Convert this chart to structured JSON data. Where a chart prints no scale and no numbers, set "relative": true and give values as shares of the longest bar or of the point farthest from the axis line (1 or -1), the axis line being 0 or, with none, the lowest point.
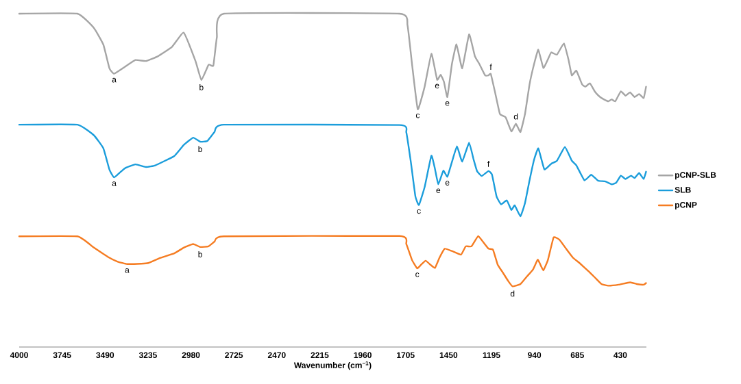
{
  "chart_data": {
    "type": "line",
    "relative": true,
    "xlabel": "**Wavenumber (cm$^{−1}$)**",
    "xlim": [
      4000,
      275
    ],
    "xticks": [
      4000,
      3745,
      3490,
      3235,
      2980,
      2725,
      2470,
      2215,
      1960,
      1705,
      1450,
      1195,
      940,
      685,
      430
    ],
    "tick_labels": "x",
    "legend": "right",
    "marker": "none",
    "line_style": "solid",
    "grid": false,
    "series": [
      {
        "name": "pCNP-SLB",
        "color": "#a5a5a5",
        "x": [
          4000,
          3654,
          3556,
          3500,
          3464,
          3436,
          3374,
          3310,
          3248,
          3177,
          3093,
          3023,
          2953,
          2918,
          2875,
          2847,
          2826,
          2784,
          1741,
          1694,
          1667,
          1633,
          1592,
          1552,
          1518,
          1497,
          1477,
          1457,
          1430,
          1403,
          1369,
          1328,
          1294,
          1267,
          1233,
          1213,
          1199,
          1172,
          1145,
          1111,
          1077,
          1050,
          1023,
          996,
          969,
          942,
          917,
          887,
          860,
          840,
          806,
          765,
          738,
          718,
          691,
          657,
          637,
          610,
          582,
          555,
          528,
          501,
          481,
          460,
          427,
          399,
          372,
          345,
          318,
          291,
          277
        ],
        "values": [
          1.0,
          1.0,
          0.957,
          0.907,
          0.836,
          0.82,
          0.84,
          0.861,
          0.858,
          0.872,
          0.9,
          0.943,
          0.858,
          0.801,
          0.847,
          0.844,
          0.929,
          1.0,
          1.0,
          0.966,
          0.849,
          0.713,
          0.781,
          0.88,
          0.802,
          0.817,
          0.795,
          0.75,
          0.849,
          0.908,
          0.836,
          0.938,
          0.873,
          0.849,
          0.815,
          0.815,
          0.819,
          0.76,
          0.699,
          0.689,
          0.647,
          0.67,
          0.645,
          0.699,
          0.788,
          0.849,
          0.892,
          0.837,
          0.863,
          0.884,
          0.877,
          0.911,
          0.863,
          0.815,
          0.829,
          0.788,
          0.781,
          0.791,
          0.767,
          0.752,
          0.743,
          0.737,
          0.743,
          0.737,
          0.767,
          0.754,
          0.764,
          0.75,
          0.759,
          0.747,
          0.781
        ]
      },
      {
        "name": "SLB",
        "color": "#1b9ddb",
        "x": [
          4000,
          3654,
          3556,
          3500,
          3464,
          3436,
          3373,
          3310,
          3247,
          3191,
          3079,
          3023,
          2967,
          2925,
          2883,
          2840,
          2784,
          1741,
          1701,
          1674,
          1647,
          1626,
          1592,
          1552,
          1531,
          1511,
          1481,
          1457,
          1430,
          1400,
          1369,
          1328,
          1301,
          1281,
          1253,
          1213,
          1192,
          1165,
          1138,
          1104,
          1077,
          1057,
          1023,
          996,
          969,
          942,
          917,
          881,
          840,
          806,
          759,
          718,
          691,
          643,
          603,
          562,
          521,
          481,
          454,
          427,
          399,
          366,
          345,
          318,
          291,
          277
        ],
        "values": [
          0.667,
          0.667,
          0.635,
          0.596,
          0.532,
          0.509,
          0.536,
          0.548,
          0.54,
          0.545,
          0.573,
          0.606,
          0.628,
          0.616,
          0.618,
          0.645,
          0.667,
          0.666,
          0.644,
          0.555,
          0.452,
          0.426,
          0.48,
          0.574,
          0.535,
          0.488,
          0.529,
          0.511,
          0.555,
          0.602,
          0.556,
          0.613,
          0.562,
          0.528,
          0.513,
          0.528,
          0.517,
          0.452,
          0.428,
          0.44,
          0.411,
          0.425,
          0.392,
          0.432,
          0.5,
          0.562,
          0.596,
          0.533,
          0.55,
          0.559,
          0.6,
          0.559,
          0.545,
          0.5,
          0.517,
          0.499,
          0.497,
          0.488,
          0.493,
          0.514,
          0.504,
          0.514,
          0.507,
          0.522,
          0.504,
          0.526
        ]
      },
      {
        "name": "pCNP",
        "color": "#f57c22",
        "x": [
          4000,
          3654,
          3556,
          3472,
          3415,
          3359,
          3275,
          3233,
          3163,
          3079,
          3023,
          2967,
          2925,
          2876,
          2840,
          2784,
          1741,
          1701,
          1667,
          1636,
          1613,
          1586,
          1558,
          1531,
          1504,
          1473,
          1430,
          1376,
          1348,
          1314,
          1274,
          1240,
          1213,
          1186,
          1158,
          1131,
          1097,
          1070,
          1023,
          982,
          948,
          921,
          908,
          887,
          860,
          826,
          792,
          752,
          711,
          670,
          616,
          576,
          542,
          501,
          440,
          372,
          332,
          291,
          277
        ],
        "values": [
          0.332,
          0.332,
          0.298,
          0.27,
          0.256,
          0.249,
          0.25,
          0.252,
          0.267,
          0.281,
          0.298,
          0.309,
          0.3,
          0.302,
          0.316,
          0.332,
          0.333,
          0.309,
          0.261,
          0.236,
          0.247,
          0.259,
          0.247,
          0.237,
          0.268,
          0.295,
          0.288,
          0.277,
          0.302,
          0.302,
          0.333,
          0.312,
          0.295,
          0.292,
          0.247,
          0.226,
          0.199,
          0.182,
          0.189,
          0.213,
          0.233,
          0.262,
          0.251,
          0.23,
          0.261,
          0.329,
          0.322,
          0.295,
          0.268,
          0.251,
          0.226,
          0.206,
          0.189,
          0.184,
          0.187,
          0.194,
          0.189,
          0.187,
          0.192
        ]
      }
    ],
    "annotations": [
      {
        "text": "a",
        "x": 3436,
        "y": 0.82
      },
      {
        "text": "b",
        "x": 2918,
        "y": 0.801
      },
      {
        "text": "c",
        "x": 1633,
        "y": 0.713
      },
      {
        "text": "e",
        "x": 1518,
        "y": 0.802
      },
      {
        "text": "e",
        "x": 1457,
        "y": 0.75
      },
      {
        "text": "f",
        "x": 1199,
        "y": 0.819
      },
      {
        "text": "d",
        "x": 1050,
        "y": 0.67
      },
      {
        "text": "a",
        "x": 3436,
        "y": 0.509
      },
      {
        "text": "b",
        "x": 2925,
        "y": 0.616
      },
      {
        "text": "c",
        "x": 1626,
        "y": 0.426
      },
      {
        "text": "e",
        "x": 1511,
        "y": 0.488
      },
      {
        "text": "e",
        "x": 1457,
        "y": 0.511
      },
      {
        "text": "f",
        "x": 1213,
        "y": 0.528
      },
      {
        "text": "a",
        "x": 3359,
        "y": 0.249
      },
      {
        "text": "b",
        "x": 2925,
        "y": 0.3
      },
      {
        "text": "c",
        "x": 1636,
        "y": 0.236
      },
      {
        "text": "d",
        "x": 1070,
        "y": 0.182
      }
    ]
  }
}
